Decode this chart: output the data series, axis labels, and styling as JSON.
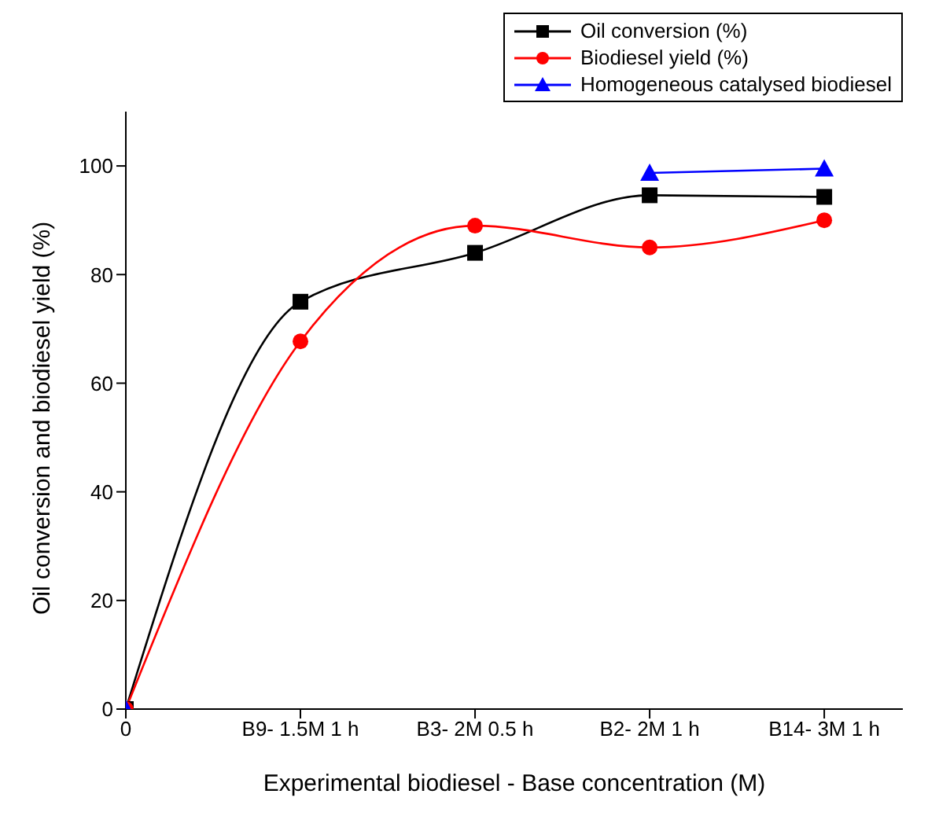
{
  "chart_data": {
    "type": "line",
    "xlabel": "Experimental biodiesel - Base concentration (M)",
    "ylabel": "Oil conversion and biodiesel yield (%)",
    "categories": [
      "0",
      "B9- 1.5M 1 h",
      "B3- 2M 0.5 h",
      "B2- 2M 1 h",
      "B14- 3M 1 h"
    ],
    "ylim": [
      0,
      110
    ],
    "yticks": [
      0,
      20,
      40,
      60,
      80,
      100
    ],
    "grid": false,
    "legend": "top right",
    "series": [
      {
        "name": "Oil conversion (%)",
        "color": "#000000",
        "marker": "square",
        "values": [
          0,
          75,
          84,
          94.6,
          94.3
        ]
      },
      {
        "name": "Biodiesel yield (%)",
        "color": "#ff0000",
        "marker": "circle",
        "values": [
          0,
          67.7,
          89,
          85,
          90
        ]
      },
      {
        "name": "Homogeneous catalysed biodiesel",
        "color": "#0000ff",
        "marker": "triangle",
        "values": [
          0,
          null,
          null,
          98.7,
          99.5
        ]
      }
    ]
  }
}
